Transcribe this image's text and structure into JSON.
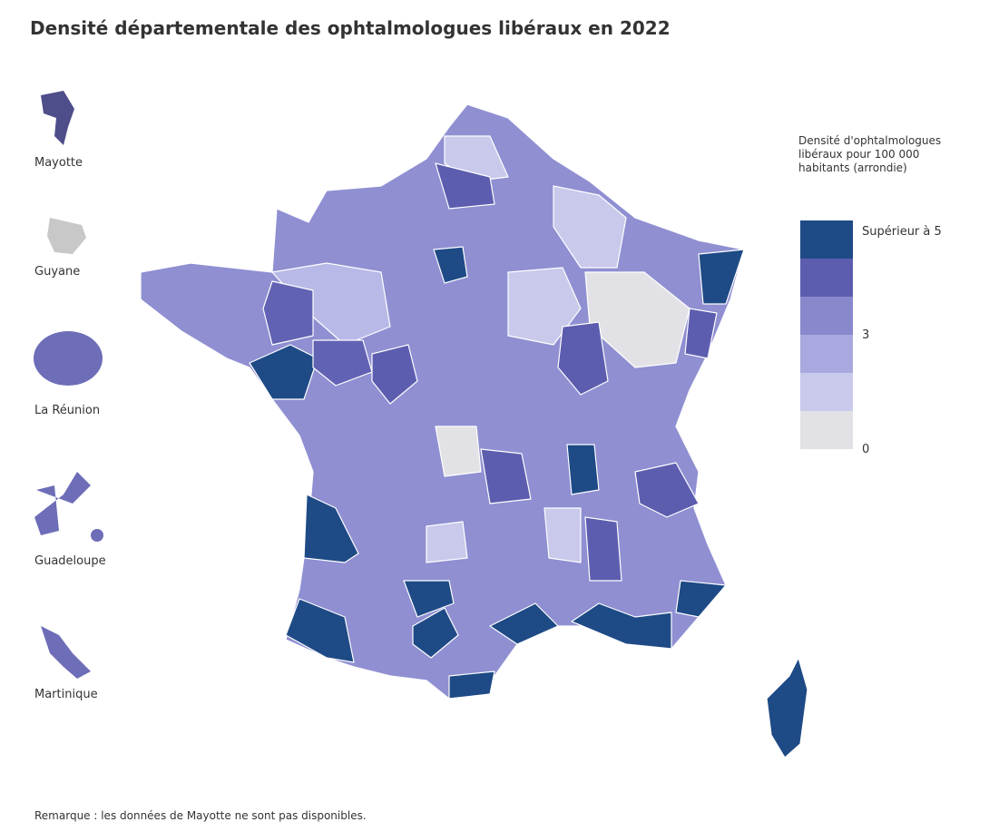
{
  "header": {
    "title": "Densité départementale des ophtalmologues libéraux en 2022"
  },
  "overseas": [
    "Mayotte",
    "Guyane",
    "La Réunion",
    "Guadeloupe",
    "Martinique"
  ],
  "legend": {
    "title": "Densité d'ophtalmologues libéraux pour 100 000 habitants (arrondie)",
    "colors": [
      "#e2e2e6",
      "#c9c9ec",
      "#a9a9e0",
      "#8888cc",
      "#5d5db0",
      "#1e4a86"
    ],
    "ticks": [
      0,
      3
    ],
    "top_label": "Supérieur à 5"
  },
  "note": "Remarque : les données de Mayotte ne sont pas disponibles."
}
